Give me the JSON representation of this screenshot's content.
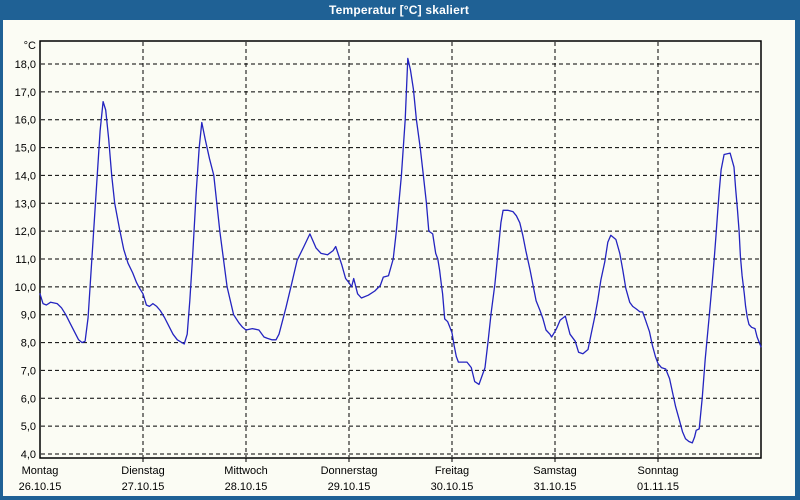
{
  "window": {
    "title": "Temperatur [°C] skaliert"
  },
  "colors": {
    "title_bar": "#1F6195",
    "title_text": "#FFFFFF",
    "background": "#FBFCF4",
    "line": "#2424C0",
    "grid": "#000000",
    "plot_border": "#000000"
  },
  "chart_data": {
    "type": "line",
    "title": "Temperatur [°C] skaliert",
    "y_axis": {
      "unit": "°C",
      "min": 4.0,
      "max": 18.0,
      "step": 1.0,
      "ticks": [
        {
          "v": 18,
          "label": "18,0"
        },
        {
          "v": 17,
          "label": "17,0"
        },
        {
          "v": 16,
          "label": "16,0"
        },
        {
          "v": 15,
          "label": "15,0"
        },
        {
          "v": 14,
          "label": "14,0"
        },
        {
          "v": 13,
          "label": "13,0"
        },
        {
          "v": 12,
          "label": "12,0"
        },
        {
          "v": 11,
          "label": "11,0"
        },
        {
          "v": 10,
          "label": "10,0"
        },
        {
          "v": 9,
          "label": "9,0"
        },
        {
          "v": 8,
          "label": "8,0"
        },
        {
          "v": 7,
          "label": "7,0"
        },
        {
          "v": 6,
          "label": "6,0"
        },
        {
          "v": 5,
          "label": "5,0"
        },
        {
          "v": 4,
          "label": "4,0"
        }
      ]
    },
    "x_axis": {
      "range_hours": 168,
      "days": [
        {
          "name": "Montag",
          "date": "26.10.15"
        },
        {
          "name": "Dienstag",
          "date": "27.10.15"
        },
        {
          "name": "Mittwoch",
          "date": "28.10.15"
        },
        {
          "name": "Donnerstag",
          "date": "29.10.15"
        },
        {
          "name": "Freitag",
          "date": "30.10.15"
        },
        {
          "name": "Samstag",
          "date": "31.10.15"
        },
        {
          "name": "Sonntag",
          "date": "01.11.15"
        }
      ]
    },
    "grid": {
      "style": "dashed",
      "on": true
    },
    "series": [
      {
        "name": "Temperatur",
        "unit": "°C",
        "points": [
          [
            0,
            9.75
          ],
          [
            0.7,
            9.4
          ],
          [
            1.5,
            9.35
          ],
          [
            2.5,
            9.45
          ],
          [
            4,
            9.4
          ],
          [
            5,
            9.25
          ],
          [
            6,
            9.0
          ],
          [
            7,
            8.7
          ],
          [
            8,
            8.4
          ],
          [
            9,
            8.1
          ],
          [
            9.8,
            8.0
          ],
          [
            10.5,
            8.05
          ],
          [
            11.2,
            8.9
          ],
          [
            12,
            10.8
          ],
          [
            13,
            13.2
          ],
          [
            14,
            15.6
          ],
          [
            14.7,
            16.65
          ],
          [
            15.3,
            16.35
          ],
          [
            16,
            15.3
          ],
          [
            16.7,
            14.0
          ],
          [
            17.4,
            13.0
          ],
          [
            18.5,
            12.1
          ],
          [
            19.5,
            11.35
          ],
          [
            20.5,
            10.85
          ],
          [
            21.6,
            10.5
          ],
          [
            22.5,
            10.15
          ],
          [
            23.2,
            9.95
          ],
          [
            24,
            9.75
          ],
          [
            24.8,
            9.35
          ],
          [
            25.5,
            9.3
          ],
          [
            26.3,
            9.4
          ],
          [
            27.2,
            9.3
          ],
          [
            28,
            9.15
          ],
          [
            29,
            8.9
          ],
          [
            30,
            8.6
          ],
          [
            31,
            8.3
          ],
          [
            32,
            8.1
          ],
          [
            33.6,
            7.95
          ],
          [
            34.3,
            8.3
          ],
          [
            34.9,
            9.5
          ],
          [
            35.6,
            11.2
          ],
          [
            36.4,
            13.4
          ],
          [
            37.1,
            15.0
          ],
          [
            37.7,
            15.9
          ],
          [
            38.5,
            15.3
          ],
          [
            39.5,
            14.6
          ],
          [
            40.5,
            14.0
          ],
          [
            41.9,
            12.0
          ],
          [
            43.6,
            10.0
          ],
          [
            45.1,
            9.0
          ],
          [
            46.4,
            8.7
          ],
          [
            47.2,
            8.55
          ],
          [
            48,
            8.45
          ],
          [
            49.5,
            8.5
          ],
          [
            51,
            8.45
          ],
          [
            52.2,
            8.2
          ],
          [
            53,
            8.15
          ],
          [
            54,
            8.1
          ],
          [
            55,
            8.1
          ],
          [
            55.7,
            8.3
          ],
          [
            57.3,
            9.25
          ],
          [
            58.7,
            10.15
          ],
          [
            59.9,
            10.95
          ],
          [
            61.5,
            11.45
          ],
          [
            62.9,
            11.9
          ],
          [
            64.3,
            11.4
          ],
          [
            65.5,
            11.2
          ],
          [
            67,
            11.15
          ],
          [
            68.3,
            11.3
          ],
          [
            68.9,
            11.45
          ],
          [
            70.3,
            10.8
          ],
          [
            71.2,
            10.3
          ],
          [
            72,
            10.15
          ],
          [
            72.6,
            10.0
          ],
          [
            73.1,
            10.3
          ],
          [
            74,
            9.75
          ],
          [
            74.9,
            9.6
          ],
          [
            76.5,
            9.7
          ],
          [
            78,
            9.85
          ],
          [
            79.3,
            10.05
          ],
          [
            80,
            10.35
          ],
          [
            81.2,
            10.4
          ],
          [
            82.3,
            11.0
          ],
          [
            83,
            11.95
          ],
          [
            84.2,
            14.0
          ],
          [
            85.1,
            16.0
          ],
          [
            85.7,
            18.2
          ],
          [
            86.3,
            17.8
          ],
          [
            87,
            17.1
          ],
          [
            87.7,
            16.0
          ],
          [
            88.6,
            15.0
          ],
          [
            89.3,
            14.05
          ],
          [
            90,
            13.05
          ],
          [
            90.6,
            12.0
          ],
          [
            91.5,
            11.9
          ],
          [
            92.2,
            11.2
          ],
          [
            92.7,
            11.0
          ],
          [
            93.1,
            10.6
          ],
          [
            93.5,
            10.1
          ],
          [
            93.8,
            9.75
          ],
          [
            94.3,
            8.85
          ],
          [
            95,
            8.75
          ],
          [
            95.5,
            8.55
          ],
          [
            96,
            8.35
          ],
          [
            96.5,
            7.9
          ],
          [
            97,
            7.5
          ],
          [
            97.5,
            7.3
          ],
          [
            99.5,
            7.3
          ],
          [
            100.5,
            7.1
          ],
          [
            101.3,
            6.6
          ],
          [
            102.3,
            6.5
          ],
          [
            103.7,
            7.1
          ],
          [
            104.4,
            8.05
          ],
          [
            105.1,
            9.05
          ],
          [
            106,
            10.1
          ],
          [
            106.7,
            11.2
          ],
          [
            107.4,
            12.3
          ],
          [
            107.9,
            12.75
          ],
          [
            109,
            12.75
          ],
          [
            110.2,
            12.7
          ],
          [
            111,
            12.55
          ],
          [
            111.8,
            12.3
          ],
          [
            112.5,
            11.85
          ],
          [
            113.2,
            11.3
          ],
          [
            114.2,
            10.6
          ],
          [
            114.9,
            10.05
          ],
          [
            115.6,
            9.5
          ],
          [
            116.5,
            9.15
          ],
          [
            117.2,
            8.85
          ],
          [
            117.9,
            8.45
          ],
          [
            118.8,
            8.3
          ],
          [
            119.2,
            8.2
          ],
          [
            120,
            8.4
          ],
          [
            120.5,
            8.55
          ],
          [
            121.2,
            8.8
          ],
          [
            122.4,
            8.95
          ],
          [
            123.5,
            8.3
          ],
          [
            124.7,
            8.05
          ],
          [
            125.5,
            7.65
          ],
          [
            126.5,
            7.6
          ],
          [
            127.7,
            7.75
          ],
          [
            128.4,
            8.3
          ],
          [
            129.3,
            8.95
          ],
          [
            130,
            9.55
          ],
          [
            130.7,
            10.25
          ],
          [
            131.6,
            10.9
          ],
          [
            132.3,
            11.6
          ],
          [
            133,
            11.85
          ],
          [
            134.2,
            11.7
          ],
          [
            135.1,
            11.2
          ],
          [
            135.8,
            10.6
          ],
          [
            136.5,
            9.95
          ],
          [
            137.4,
            9.45
          ],
          [
            138.1,
            9.3
          ],
          [
            139,
            9.2
          ],
          [
            139.8,
            9.1
          ],
          [
            140.4,
            9.1
          ],
          [
            141.1,
            8.8
          ],
          [
            142,
            8.4
          ],
          [
            142.7,
            7.9
          ],
          [
            143.4,
            7.5
          ],
          [
            144,
            7.25
          ],
          [
            144.8,
            7.1
          ],
          [
            145.8,
            7.05
          ],
          [
            146.7,
            6.7
          ],
          [
            147.4,
            6.2
          ],
          [
            148.1,
            5.7
          ],
          [
            149,
            5.2
          ],
          [
            149.7,
            4.8
          ],
          [
            150.4,
            4.55
          ],
          [
            151.2,
            4.45
          ],
          [
            152,
            4.4
          ],
          [
            152.5,
            4.6
          ],
          [
            152.9,
            4.85
          ],
          [
            153.6,
            4.9
          ],
          [
            154.3,
            6.0
          ],
          [
            155,
            7.4
          ],
          [
            155.9,
            8.9
          ],
          [
            156.6,
            10.1
          ],
          [
            157.1,
            11.0
          ],
          [
            157.5,
            11.8
          ],
          [
            157.9,
            12.7
          ],
          [
            158.3,
            13.5
          ],
          [
            158.7,
            14.2
          ],
          [
            159.4,
            14.75
          ],
          [
            160.8,
            14.8
          ],
          [
            161.7,
            14.3
          ],
          [
            162.1,
            13.5
          ],
          [
            162.5,
            12.8
          ],
          [
            162.9,
            12.0
          ],
          [
            163.2,
            11.1
          ],
          [
            163.6,
            10.4
          ],
          [
            164.1,
            9.75
          ],
          [
            164.4,
            9.3
          ],
          [
            164.8,
            8.9
          ],
          [
            165.2,
            8.65
          ],
          [
            165.8,
            8.55
          ],
          [
            166.6,
            8.5
          ],
          [
            167.1,
            8.2
          ],
          [
            168,
            7.85
          ]
        ]
      }
    ]
  }
}
